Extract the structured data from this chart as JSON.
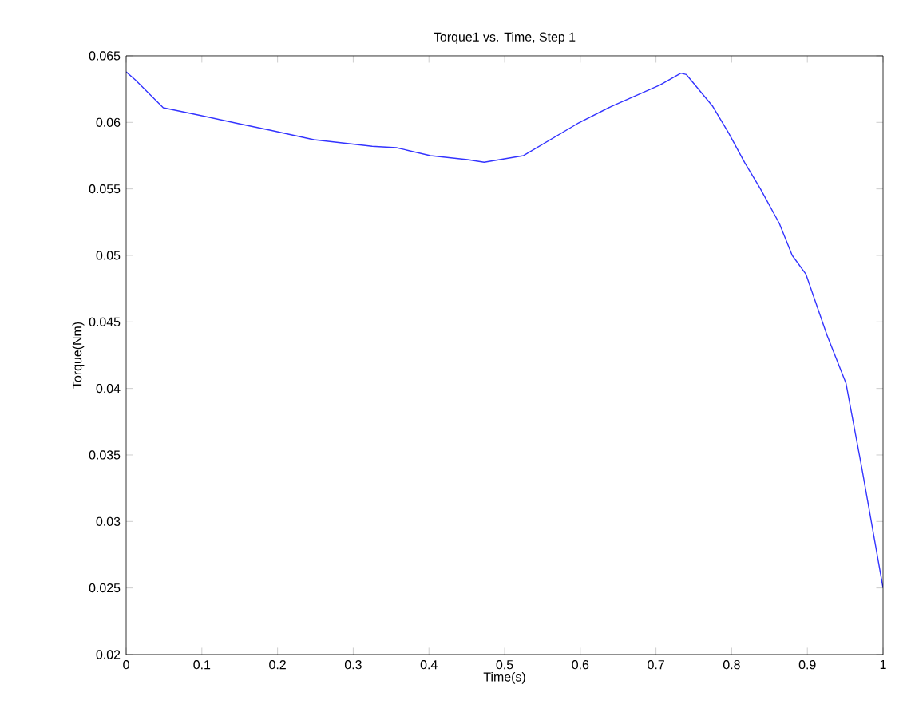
{
  "chart_data": {
    "type": "line",
    "title": "Torque1 vs. Time, Step 1",
    "xlabel": "Time(s)",
    "ylabel": "Torque(Nm)",
    "xlim": [
      0,
      1
    ],
    "ylim": [
      0.02,
      0.065
    ],
    "xticks": [
      {
        "value": 0,
        "label": "0"
      },
      0.1,
      0.2,
      0.3,
      0.4,
      0.5,
      0.6,
      0.7,
      0.8,
      0.9,
      {
        "value": 1,
        "label": "1"
      }
    ],
    "yticks": [
      0.02,
      0.025,
      0.03,
      0.035,
      0.04,
      0.045,
      0.05,
      0.055,
      0.06,
      0.065
    ],
    "marker": "none",
    "line_style": "solid",
    "series": [
      {
        "color": "#3333ff",
        "x": [
          0,
          0.012,
          0.049,
          0.1,
          0.149,
          0.191,
          0.248,
          0.325,
          0.357,
          0.402,
          0.451,
          0.473,
          0.525,
          0.596,
          0.641,
          0.705,
          0.733,
          0.74,
          0.775,
          0.796,
          0.817,
          0.838,
          0.863,
          0.88,
          0.898,
          0.926,
          0.951,
          0.972,
          1.0
        ],
        "values": [
          0.0638,
          0.0632,
          0.0611,
          0.0605,
          0.0599,
          0.0594,
          0.0587,
          0.0582,
          0.0581,
          0.0575,
          0.0572,
          0.057,
          0.0575,
          0.0599,
          0.0612,
          0.0628,
          0.0637,
          0.0636,
          0.0612,
          0.0592,
          0.057,
          0.055,
          0.0524,
          0.05,
          0.0486,
          0.044,
          0.0404,
          0.034,
          0.025
        ]
      }
    ]
  }
}
